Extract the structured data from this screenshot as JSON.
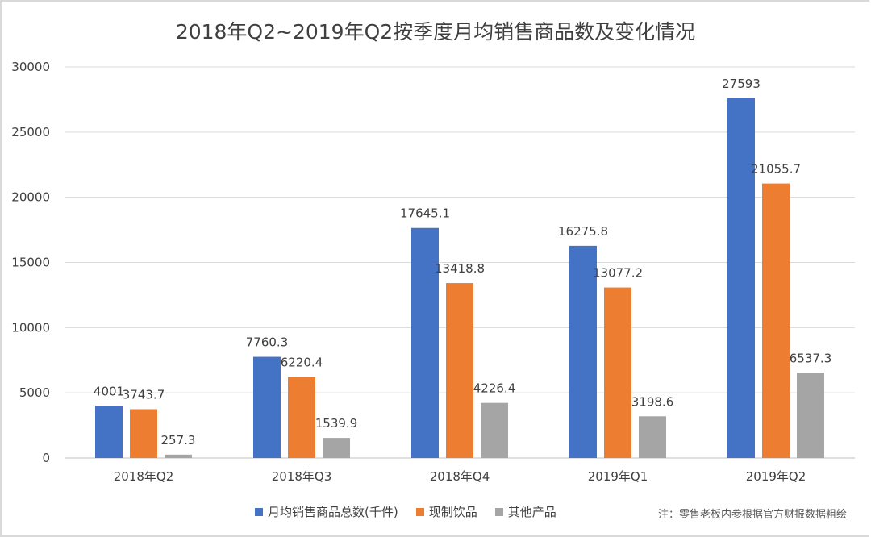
{
  "chart_data": {
    "type": "bar",
    "title": "2018年Q2~2019年Q2按季度月均销售商品数及变化情况",
    "categories": [
      "2018年Q2",
      "2018年Q3",
      "2018年Q4",
      "2019年Q1",
      "2019年Q2"
    ],
    "series": [
      {
        "name": "月均销售商品总数(千件)",
        "color": "#4472c4",
        "values": [
          4001,
          7760.3,
          17645.1,
          16275.8,
          27593
        ],
        "labels": [
          "4001",
          "7760.3",
          "17645.1",
          "16275.8",
          "27593"
        ]
      },
      {
        "name": "现制饮品",
        "color": "#ed7d31",
        "values": [
          3743.7,
          6220.4,
          13418.8,
          13077.2,
          21055.7
        ],
        "labels": [
          "3743.7",
          "6220.4",
          "13418.8",
          "13077.2",
          "21055.7"
        ]
      },
      {
        "name": "其他产品",
        "color": "#a5a5a5",
        "values": [
          257.3,
          1539.9,
          4226.4,
          3198.6,
          6537.3
        ],
        "labels": [
          "257.3",
          "1539.9",
          "4226.4",
          "3198.6",
          "6537.3"
        ]
      }
    ],
    "ylim": [
      0,
      30000
    ],
    "yticks": [
      "0",
      "5000",
      "10000",
      "15000",
      "20000",
      "25000",
      "30000"
    ],
    "grid": true,
    "legend_position": "bottom"
  },
  "note": "注：零售老板内参根据官方财报数据粗绘"
}
